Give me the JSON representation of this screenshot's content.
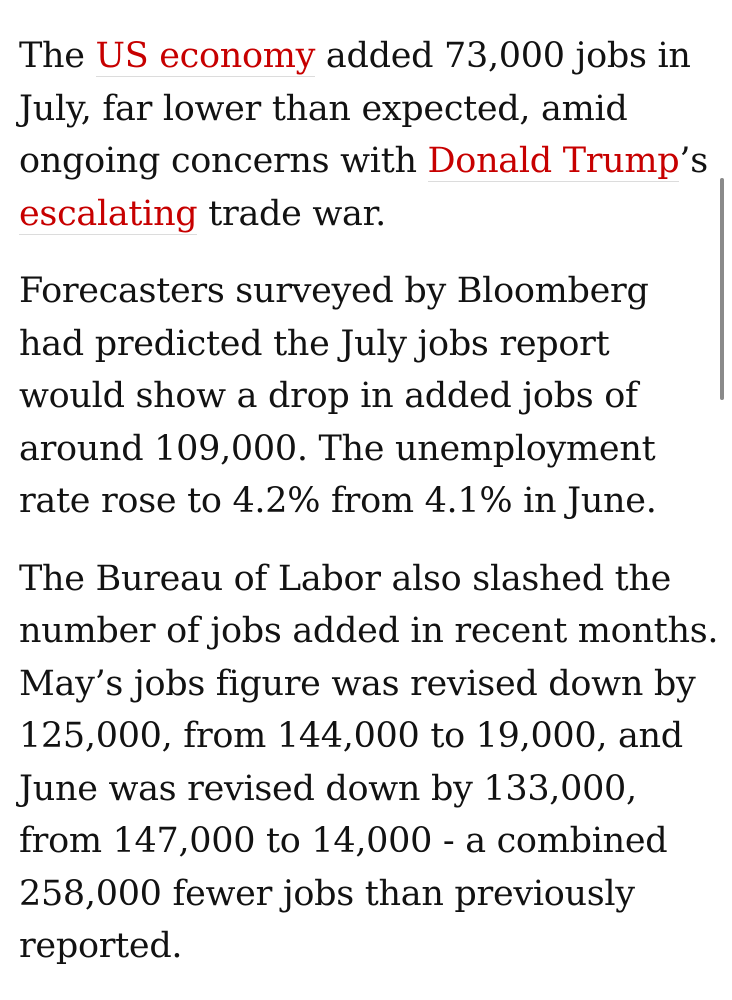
{
  "article": {
    "paragraphs": [
      {
        "segments": [
          {
            "text": "The ",
            "link": false
          },
          {
            "text": "US economy",
            "link": true
          },
          {
            "text": " added 73,000 jobs in July, far lower than expected, amid ongoing concerns with ",
            "link": false
          },
          {
            "text": "Donald Trump",
            "link": true
          },
          {
            "text": "’s ",
            "link": false
          },
          {
            "text": "escalating",
            "link": true
          },
          {
            "text": " trade war.",
            "link": false
          }
        ]
      },
      {
        "segments": [
          {
            "text": "Forecasters surveyed by Bloomberg had predicted the July jobs report would show a drop in added jobs of around 109,000. The unemployment rate rose to 4.2% from 4.1% in June.",
            "link": false
          }
        ]
      },
      {
        "segments": [
          {
            "text": "The Bureau of Labor also slashed the number of jobs added in recent months. May’s jobs figure was revised down by 125,000, from 144,000 to 19,000, and June was revised down by 133,000, from 147,000 to 14,000 - a combined 258,000 fewer jobs than previously reported.",
            "link": false
          }
        ]
      }
    ]
  },
  "colors": {
    "link": "#c70000",
    "text": "#121212",
    "background": "#ffffff"
  }
}
